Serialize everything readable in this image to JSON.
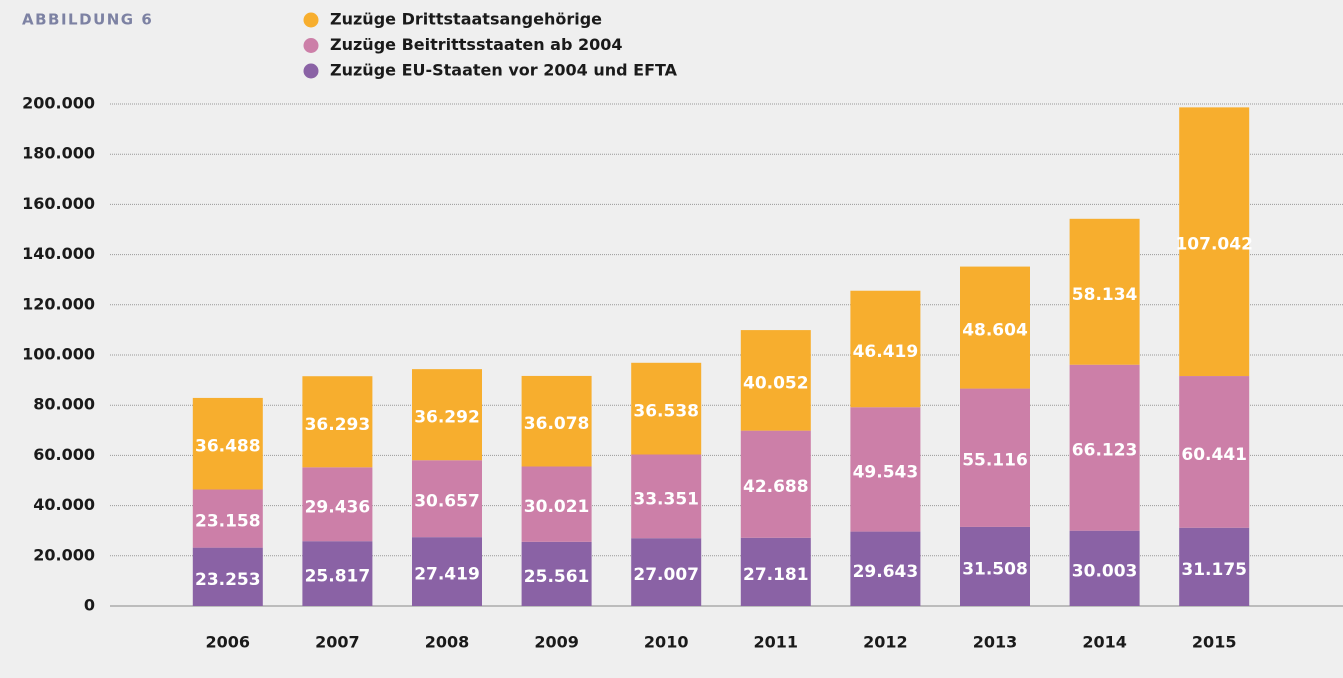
{
  "chart_data": {
    "type": "stacked_bar",
    "title": "ABBILDUNG 6",
    "categories": [
      "2006",
      "2007",
      "2008",
      "2009",
      "2010",
      "2011",
      "2012",
      "2013",
      "2014",
      "2015"
    ],
    "series": [
      {
        "name": "Zuzüge EU-Staaten vor 2004 und EFTA",
        "color": "#8a62a5",
        "values": [
          23253,
          25817,
          27419,
          25561,
          27007,
          27181,
          29643,
          31508,
          30003,
          31175
        ],
        "value_labels": [
          "23.253",
          "25.817",
          "27.419",
          "25.561",
          "27.007",
          "27.181",
          "29.643",
          "31.508",
          "30.003",
          "31.175"
        ]
      },
      {
        "name": "Zuzüge Beitrittsstaaten ab 2004",
        "color": "#cc7fa8",
        "values": [
          23158,
          29436,
          30657,
          30021,
          33351,
          42688,
          49543,
          55116,
          66123,
          60441
        ],
        "value_labels": [
          "23.158",
          "29.436",
          "30.657",
          "30.021",
          "33.351",
          "42.688",
          "49.543",
          "55.116",
          "66.123",
          "60.441"
        ]
      },
      {
        "name": "Zuzüge Drittstaatsangehörige",
        "color": "#f7ae2e",
        "values": [
          36488,
          36293,
          36292,
          36078,
          36538,
          40052,
          46419,
          48604,
          58134,
          107042
        ],
        "value_labels": [
          "36.488",
          "36.293",
          "36.292",
          "36.078",
          "36.538",
          "40.052",
          "46.419",
          "48.604",
          "58.134",
          "107.042"
        ]
      }
    ],
    "ylim": [
      0,
      200000
    ],
    "yticks": [
      0,
      {
        "value": 20000,
        "label": "20.000"
      },
      {
        "value": 40000,
        "label": "40.000"
      },
      {
        "value": 60000,
        "label": "60.000"
      },
      {
        "value": 80000,
        "label": "80.000"
      },
      {
        "value": 100000,
        "label": "100.000"
      },
      {
        "value": 120000,
        "label": "120.000"
      },
      {
        "value": 140000,
        "label": "140.000"
      },
      {
        "value": 160000,
        "label": "160.000"
      },
      {
        "value": 180000,
        "label": "180.000"
      },
      {
        "value": 200000,
        "label": "200.000"
      }
    ],
    "grid": true
  }
}
